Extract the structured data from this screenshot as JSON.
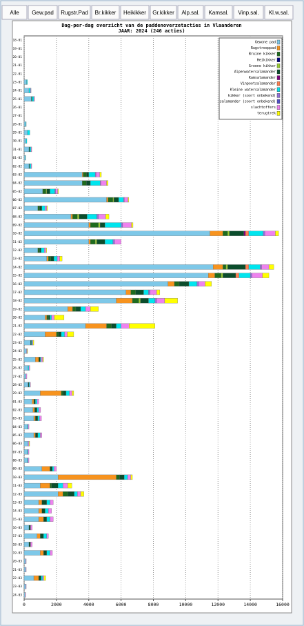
{
  "tabs": [
    "Alle",
    "Gew.pad",
    "Rugstr.Pad",
    "Br.kikker",
    "Heikikker",
    "Gr.kikker",
    "Alp.sal.",
    "Kamsal.",
    "Vinp.sal.",
    "Kl.w.sal."
  ],
  "chart_data": {
    "type": "bar",
    "orientation": "horizontal",
    "stacked": true,
    "title": "Dag-per-dag overzicht van de paddenoverzetacties in Vlaanderen",
    "subtitle": "JAAR: 2024 (246 acties)",
    "categories": [
      "18-01",
      "19-01",
      "20-01",
      "21-01",
      "22-01",
      "23-01",
      "24-01",
      "25-01",
      "26-01",
      "27-01",
      "28-01",
      "29-01",
      "30-01",
      "31-01",
      "01-02",
      "02-02",
      "03-02",
      "04-02",
      "05-02",
      "06-02",
      "07-02",
      "08-02",
      "09-02",
      "10-02",
      "11-02",
      "12-02",
      "13-02",
      "14-02",
      "15-02",
      "16-02",
      "17-02",
      "18-02",
      "19-02",
      "20-02",
      "21-02",
      "22-02",
      "23-02",
      "24-02",
      "25-02",
      "26-02",
      "27-02",
      "28-02",
      "29-02",
      "01-03",
      "02-03",
      "03-03",
      "04-03",
      "05-03",
      "06-03",
      "07-03",
      "08-03",
      "09-03",
      "10-03",
      "11-03",
      "12-03",
      "13-03",
      "14-03",
      "15-03",
      "16-03",
      "17-03",
      "18-03",
      "19-03",
      "20-03",
      "21-03",
      "22-03",
      "23-03",
      "24-03"
    ],
    "xlim": [
      0,
      16000
    ],
    "xticks": [
      0,
      2000,
      4000,
      6000,
      8000,
      10000,
      12000,
      14000,
      16000
    ],
    "grid": true,
    "legend": "top-right",
    "series": [
      {
        "name": "Gewone pad",
        "color": "#7ec8e8",
        "values": [
          0,
          0,
          0,
          0,
          0,
          150,
          300,
          450,
          0,
          0,
          100,
          200,
          120,
          300,
          60,
          300,
          3600,
          3600,
          1150,
          5100,
          850,
          2900,
          4000,
          11500,
          4000,
          850,
          1400,
          11700,
          11400,
          8900,
          6300,
          5700,
          2700,
          1300,
          3800,
          1300,
          400,
          150,
          700,
          250,
          120,
          250,
          1000,
          500,
          550,
          600,
          200,
          600,
          250,
          200,
          200,
          1100,
          2100,
          1000,
          2100,
          900,
          900,
          900,
          300,
          800,
          300,
          1000,
          100,
          100,
          600,
          100,
          60
        ]
      },
      {
        "name": "Rugstreeppad",
        "color": "#f7931e",
        "values": [
          0,
          0,
          0,
          0,
          0,
          0,
          0,
          0,
          0,
          0,
          0,
          0,
          0,
          0,
          0,
          0,
          50,
          0,
          0,
          100,
          0,
          100,
          100,
          800,
          100,
          0,
          100,
          600,
          400,
          400,
          300,
          1000,
          300,
          100,
          1300,
          700,
          0,
          0,
          200,
          0,
          0,
          0,
          1300,
          100,
          100,
          100,
          0,
          100,
          0,
          0,
          0,
          500,
          3600,
          600,
          300,
          200,
          200,
          300,
          0,
          200,
          0,
          200,
          0,
          0,
          300,
          0,
          0
        ]
      },
      {
        "name": "Bruine kikker",
        "color": "#1e6b1e",
        "values": [
          0,
          0,
          0,
          0,
          0,
          0,
          0,
          0,
          0,
          0,
          0,
          0,
          0,
          0,
          0,
          0,
          200,
          250,
          200,
          300,
          100,
          300,
          500,
          300,
          300,
          100,
          150,
          200,
          400,
          300,
          300,
          400,
          200,
          100,
          300,
          100,
          0,
          0,
          0,
          0,
          0,
          0,
          100,
          0,
          0,
          0,
          0,
          0,
          0,
          0,
          0,
          0,
          200,
          100,
          300,
          0,
          0,
          0,
          0,
          0,
          0,
          0,
          0,
          0,
          0,
          0,
          0
        ]
      },
      {
        "name": "Heikikker",
        "color": "#00007f",
        "values": [
          0,
          0,
          0,
          0,
          0,
          0,
          0,
          0,
          0,
          0,
          0,
          0,
          0,
          0,
          0,
          0,
          0,
          0,
          0,
          0,
          0,
          0,
          0,
          0,
          0,
          0,
          0,
          0,
          0,
          0,
          0,
          0,
          0,
          0,
          0,
          0,
          0,
          0,
          0,
          0,
          0,
          0,
          0,
          0,
          0,
          0,
          0,
          0,
          0,
          0,
          0,
          0,
          0,
          0,
          0,
          0,
          0,
          0,
          0,
          0,
          0,
          0,
          0,
          0,
          0,
          0,
          0
        ]
      },
      {
        "name": "Groene kikker",
        "color": "#9acd32",
        "values": [
          0,
          0,
          0,
          0,
          0,
          0,
          0,
          0,
          0,
          0,
          0,
          0,
          0,
          0,
          0,
          0,
          0,
          0,
          50,
          50,
          0,
          100,
          100,
          100,
          100,
          0,
          0,
          100,
          100,
          0,
          0,
          100,
          0,
          0,
          0,
          0,
          0,
          0,
          0,
          0,
          0,
          0,
          0,
          0,
          0,
          0,
          0,
          0,
          0,
          0,
          0,
          0,
          0,
          0,
          0,
          0,
          0,
          0,
          0,
          0,
          0,
          0,
          0,
          0,
          0,
          0,
          0
        ]
      },
      {
        "name": "Alpenwatersalamander",
        "color": "#0b4d2c",
        "values": [
          0,
          0,
          0,
          0,
          0,
          0,
          0,
          50,
          0,
          0,
          0,
          0,
          0,
          50,
          0,
          40,
          150,
          250,
          200,
          300,
          150,
          500,
          300,
          900,
          500,
          100,
          200,
          1100,
          800,
          600,
          500,
          500,
          300,
          100,
          300,
          200,
          50,
          0,
          100,
          0,
          0,
          50,
          200,
          100,
          150,
          150,
          0,
          150,
          0,
          0,
          0,
          150,
          300,
          400,
          400,
          300,
          200,
          200,
          100,
          200,
          100,
          200,
          0,
          0,
          150,
          0,
          0
        ]
      },
      {
        "name": "Kamsalamander",
        "color": "#800080",
        "values": [
          0,
          0,
          0,
          0,
          0,
          0,
          0,
          0,
          0,
          0,
          0,
          0,
          0,
          0,
          0,
          0,
          0,
          0,
          0,
          0,
          0,
          0,
          0,
          100,
          0,
          0,
          0,
          0,
          0,
          0,
          0,
          0,
          0,
          0,
          0,
          0,
          0,
          0,
          0,
          0,
          0,
          0,
          0,
          0,
          0,
          0,
          0,
          0,
          0,
          0,
          0,
          0,
          0,
          0,
          0,
          0,
          0,
          0,
          0,
          0,
          0,
          0,
          0,
          0,
          0,
          0,
          0
        ]
      },
      {
        "name": "Vinpootsalamander",
        "color": "#ff7f50",
        "values": [
          0,
          0,
          0,
          0,
          0,
          0,
          0,
          0,
          0,
          0,
          0,
          0,
          0,
          0,
          0,
          0,
          0,
          0,
          0,
          0,
          0,
          0,
          0,
          200,
          0,
          0,
          0,
          200,
          200,
          0,
          0,
          0,
          0,
          0,
          0,
          0,
          0,
          0,
          0,
          0,
          0,
          0,
          0,
          0,
          0,
          0,
          0,
          0,
          0,
          0,
          0,
          0,
          0,
          0,
          0,
          0,
          0,
          0,
          0,
          0,
          0,
          0,
          0,
          0,
          0,
          0,
          0
        ]
      },
      {
        "name": "Kleine watersalamander",
        "color": "#00e5ee",
        "values": [
          0,
          0,
          0,
          0,
          0,
          50,
          100,
          100,
          0,
          0,
          30,
          150,
          50,
          80,
          30,
          90,
          400,
          600,
          300,
          300,
          200,
          600,
          1000,
          900,
          500,
          200,
          200,
          700,
          700,
          500,
          300,
          400,
          300,
          100,
          300,
          200,
          50,
          0,
          50,
          50,
          0,
          50,
          200,
          100,
          100,
          100,
          50,
          150,
          0,
          50,
          50,
          100,
          200,
          300,
          200,
          200,
          200,
          200,
          0,
          200,
          0,
          200,
          0,
          0,
          100,
          0,
          0
        ]
      },
      {
        "name": "kikker (soort onbekend)",
        "color": "#9370db",
        "values": [
          0,
          0,
          0,
          0,
          0,
          0,
          0,
          0,
          0,
          0,
          0,
          0,
          0,
          0,
          0,
          0,
          50,
          50,
          50,
          50,
          0,
          100,
          100,
          100,
          100,
          0,
          0,
          100,
          100,
          100,
          100,
          100,
          0,
          0,
          0,
          0,
          0,
          0,
          0,
          0,
          0,
          0,
          0,
          0,
          0,
          0,
          0,
          0,
          0,
          0,
          0,
          0,
          0,
          0,
          0,
          0,
          0,
          0,
          0,
          0,
          0,
          0,
          0,
          0,
          0,
          0,
          0
        ]
      },
      {
        "name": "salamander (soort onbekend)",
        "color": "#5050c8",
        "values": [
          0,
          0,
          0,
          0,
          0,
          0,
          0,
          0,
          0,
          0,
          0,
          0,
          0,
          0,
          0,
          0,
          0,
          0,
          0,
          0,
          0,
          0,
          0,
          0,
          0,
          0,
          0,
          0,
          0,
          0,
          0,
          0,
          0,
          0,
          0,
          0,
          0,
          0,
          0,
          0,
          0,
          0,
          0,
          0,
          0,
          0,
          0,
          0,
          0,
          0,
          0,
          0,
          0,
          0,
          0,
          0,
          0,
          0,
          0,
          0,
          0,
          0,
          0,
          0,
          0,
          0,
          0
        ]
      },
      {
        "name": "slachtoffers",
        "color": "#ee82ee",
        "values": [
          0,
          0,
          0,
          0,
          0,
          0,
          30,
          50,
          0,
          0,
          0,
          0,
          0,
          40,
          0,
          40,
          230,
          350,
          130,
          230,
          100,
          450,
          540,
          650,
          400,
          100,
          150,
          450,
          650,
          400,
          400,
          500,
          300,
          170,
          500,
          170,
          50,
          30,
          100,
          50,
          50,
          40,
          170,
          100,
          120,
          120,
          50,
          100,
          50,
          50,
          50,
          150,
          200,
          300,
          200,
          200,
          200,
          200,
          100,
          100,
          100,
          150,
          30,
          30,
          80,
          30,
          30
        ]
      },
      {
        "name": "terugtrek",
        "color": "#ffff00",
        "values": [
          0,
          0,
          0,
          0,
          0,
          0,
          0,
          0,
          0,
          0,
          0,
          0,
          0,
          0,
          0,
          0,
          100,
          100,
          50,
          50,
          50,
          200,
          100,
          200,
          0,
          50,
          150,
          300,
          400,
          400,
          200,
          800,
          500,
          600,
          1600,
          400,
          50,
          30,
          50,
          0,
          0,
          0,
          100,
          0,
          0,
          0,
          0,
          0,
          40,
          0,
          0,
          0,
          100,
          250,
          200,
          0,
          0,
          0,
          0,
          0,
          0,
          0,
          0,
          0,
          100,
          0,
          0
        ]
      }
    ]
  }
}
